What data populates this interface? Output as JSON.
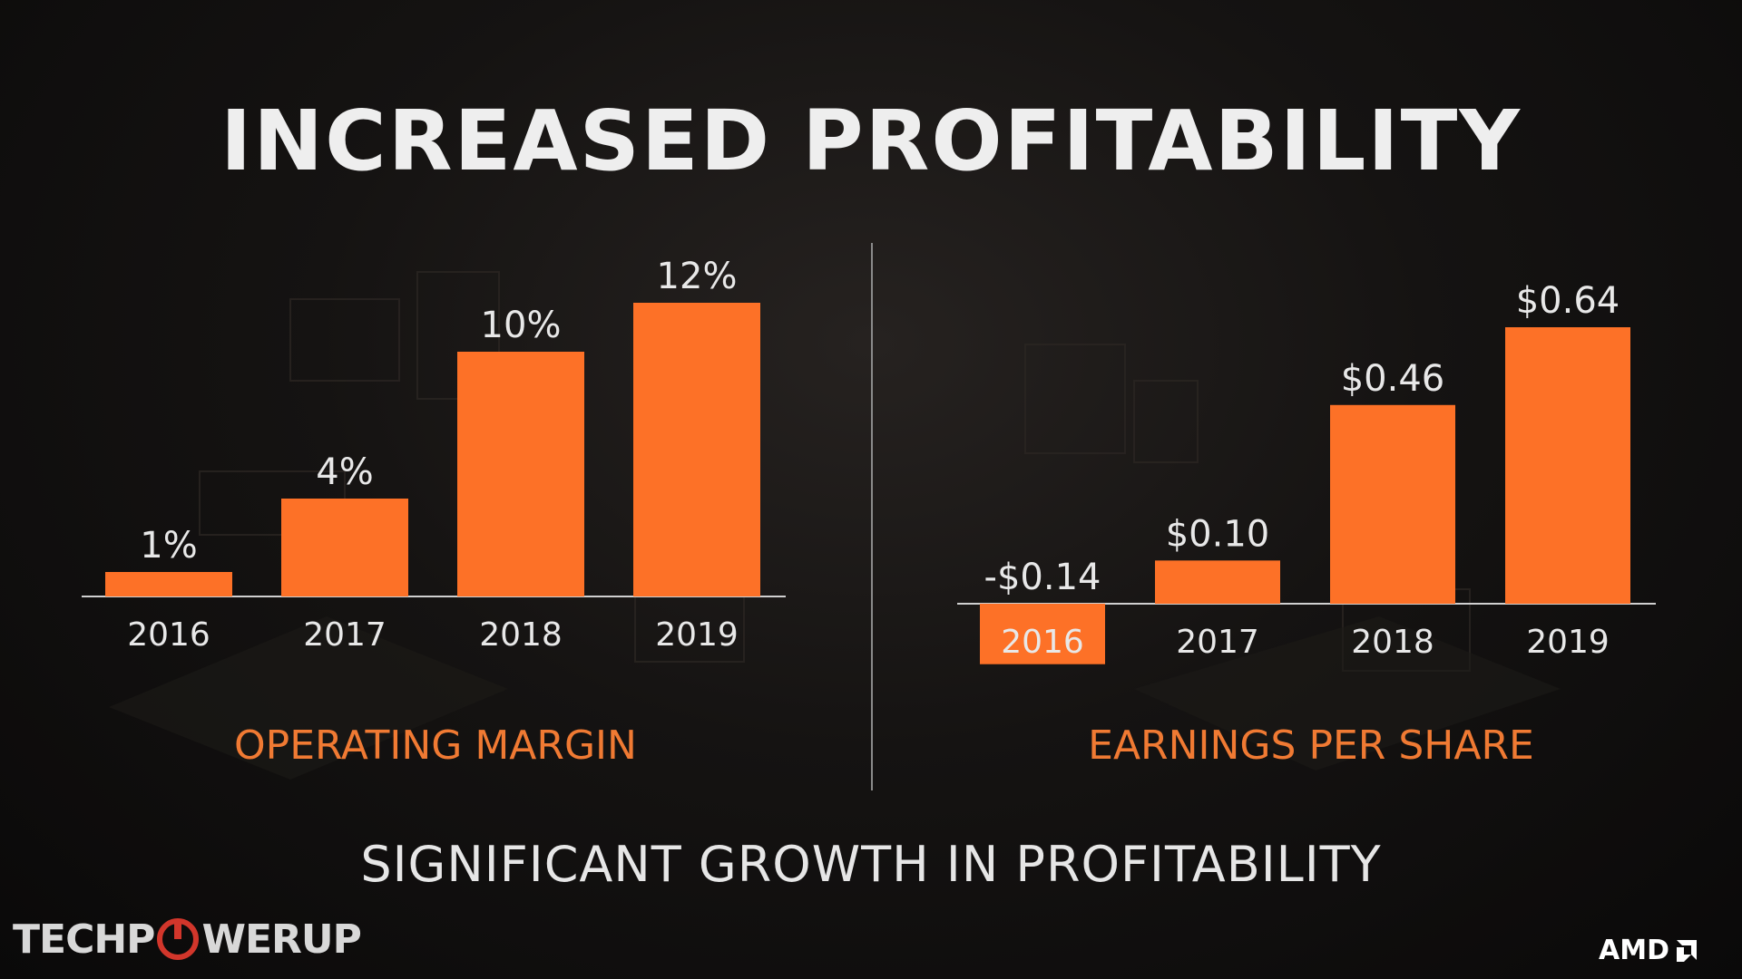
{
  "title": "INCREASED PROFITABILITY",
  "subtitle": "SIGNIFICANT GROWTH IN PROFITABILITY",
  "colors": {
    "bar": "#fd7127",
    "caption": "#f07a33",
    "text": "#e8e8e8",
    "axis": "#d0d0d0"
  },
  "chart_data": [
    {
      "type": "bar",
      "categories": [
        "2016",
        "2017",
        "2018",
        "2019"
      ],
      "values": [
        1,
        4,
        10,
        12
      ],
      "value_labels": [
        "1%",
        "4%",
        "10%",
        "12%"
      ],
      "caption": "OPERATING MARGIN",
      "ylim": [
        0,
        12
      ]
    },
    {
      "type": "bar",
      "categories": [
        "2016",
        "2017",
        "2018",
        "2019"
      ],
      "values": [
        -0.14,
        0.1,
        0.46,
        0.64
      ],
      "value_labels": [
        "-$0.14",
        "$0.10",
        "$0.46",
        "$0.64"
      ],
      "caption": "EARNINGS PER SHARE",
      "ylim": [
        -0.14,
        0.64
      ]
    }
  ],
  "watermark": {
    "left_text": "TECHP",
    "right_text": "WERUP",
    "icon": "power-icon"
  },
  "brand": {
    "text": "AMD",
    "icon": "amd-arrow-icon"
  }
}
